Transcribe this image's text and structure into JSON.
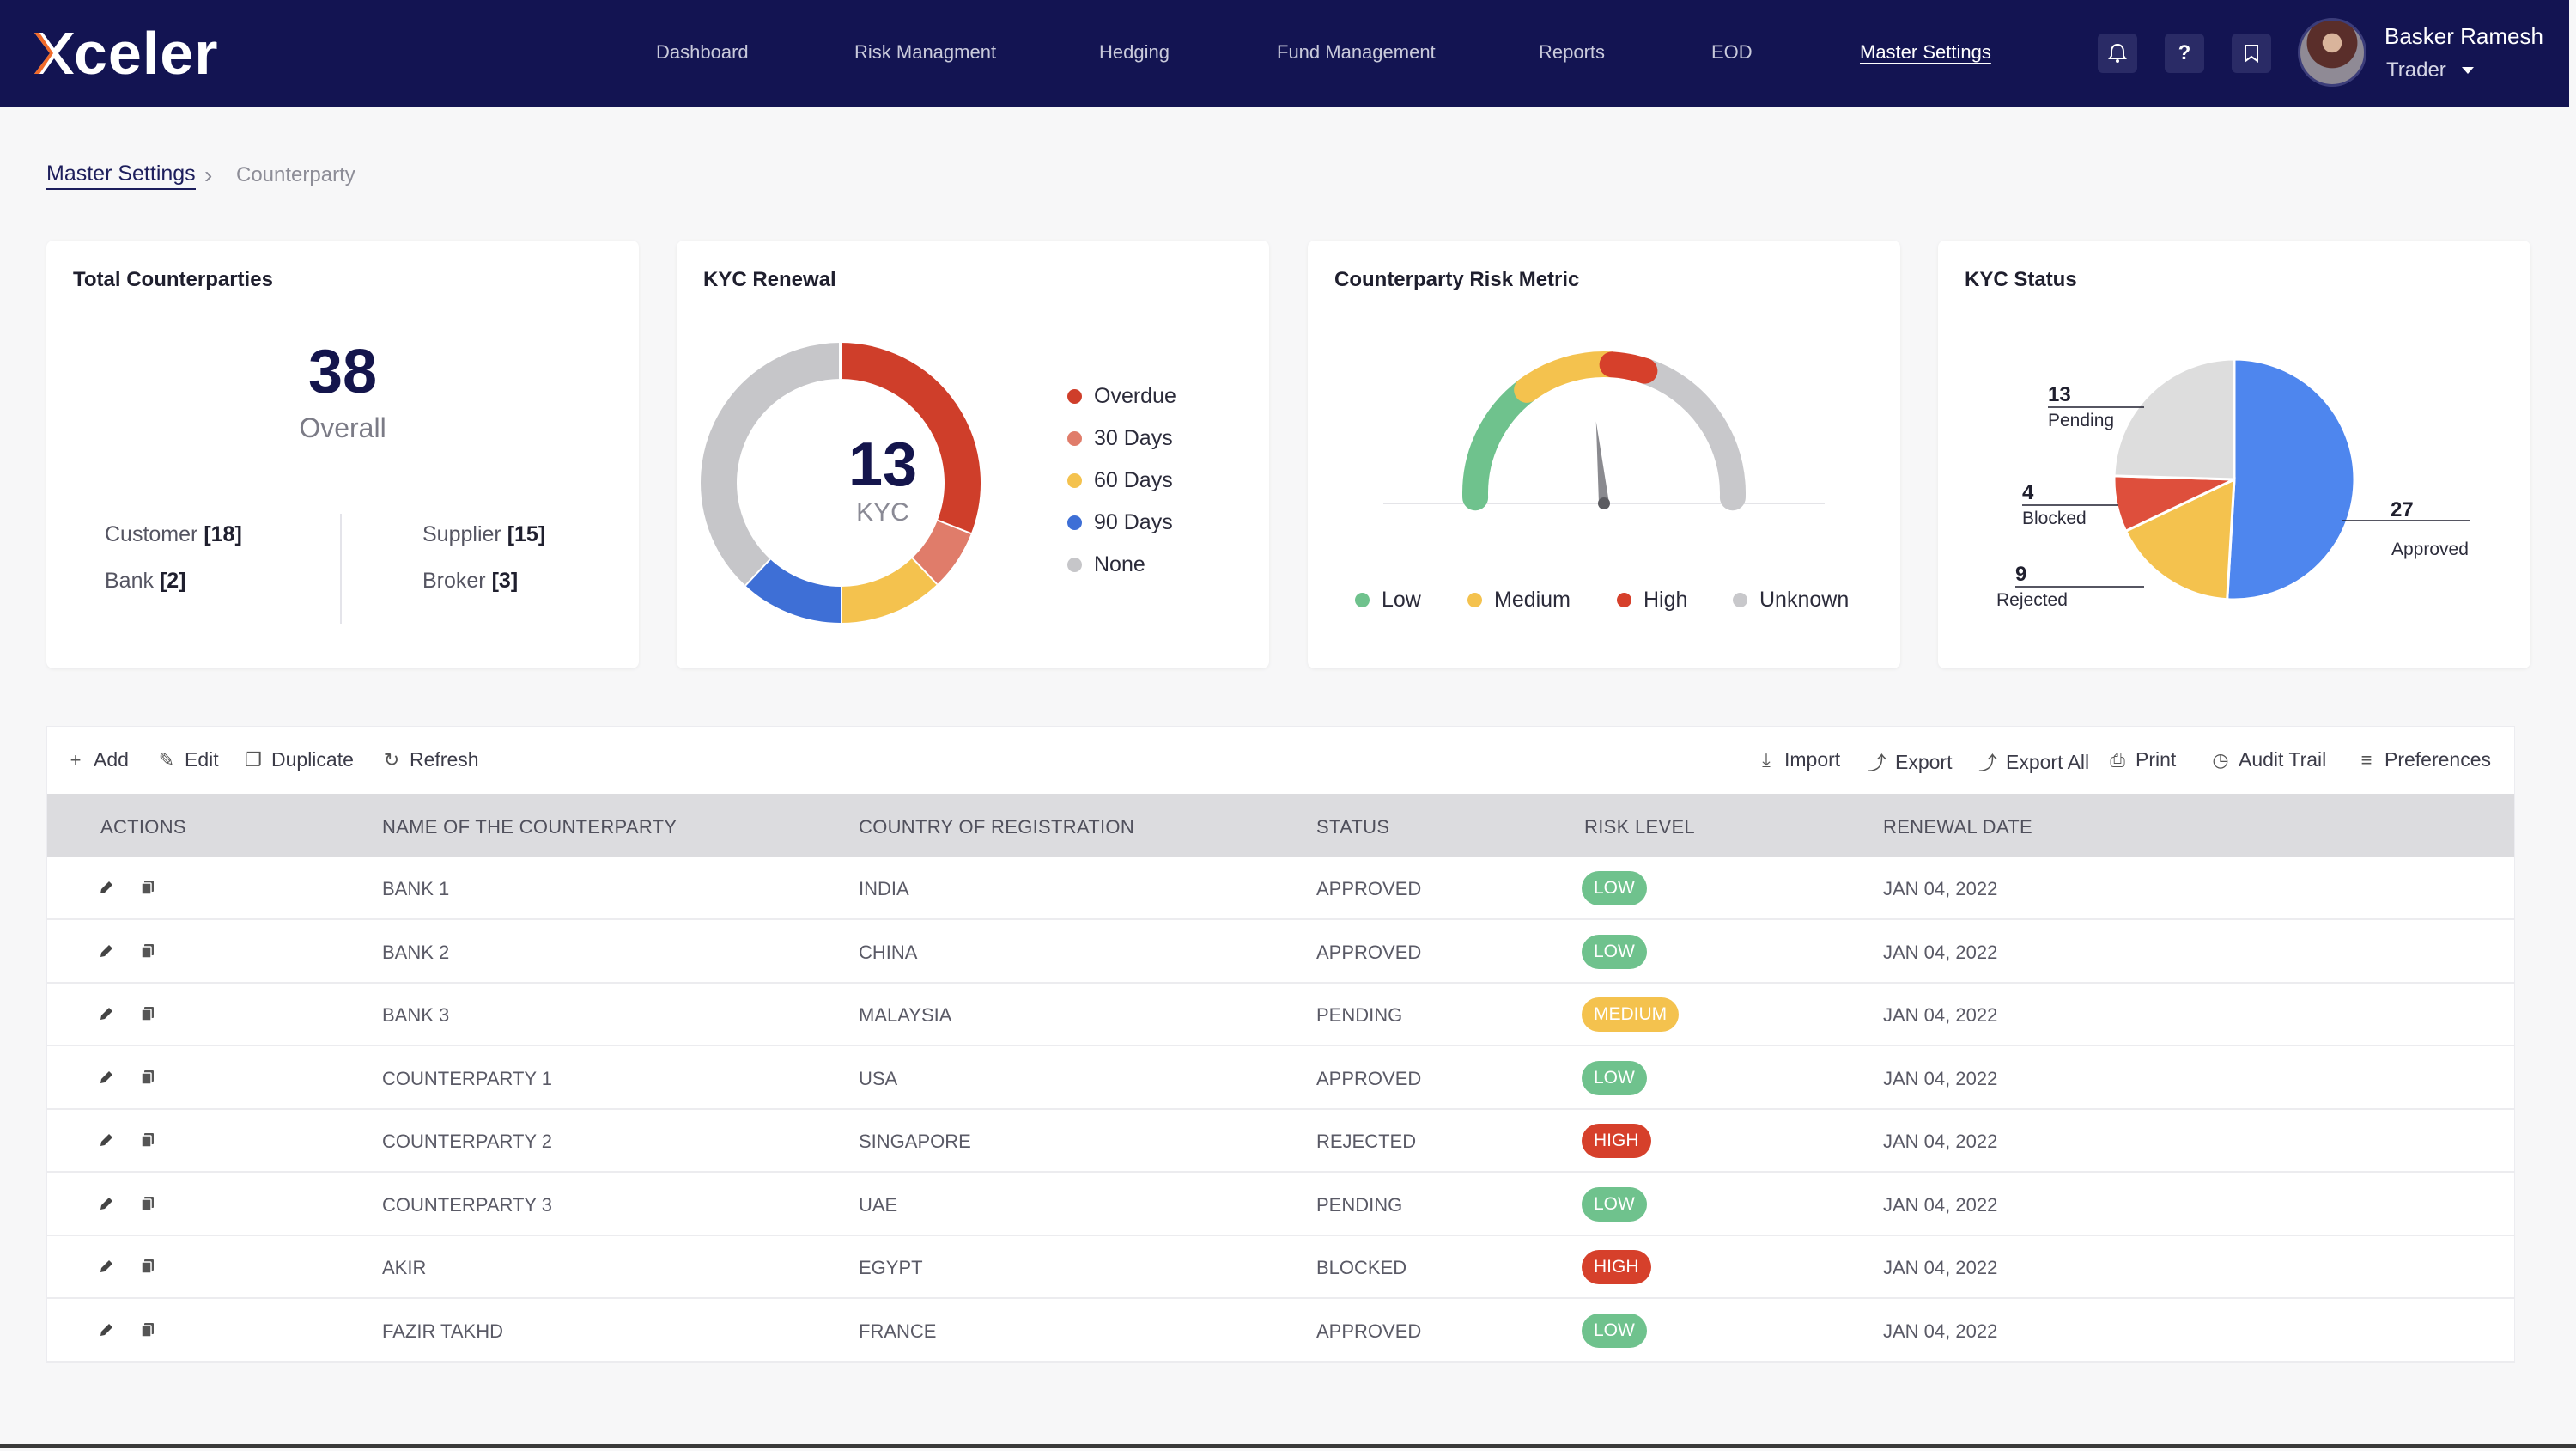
{
  "app": {
    "logo_text": "celer"
  },
  "nav": {
    "items": [
      {
        "label": "Dashboard",
        "active": false
      },
      {
        "label": "Risk Managment",
        "active": false
      },
      {
        "label": "Hedging",
        "active": false
      },
      {
        "label": "Fund Management",
        "active": false
      },
      {
        "label": "Reports",
        "active": false
      },
      {
        "label": "EOD",
        "active": false
      },
      {
        "label": "Master Settings",
        "active": true
      }
    ],
    "icons": [
      "bell-icon",
      "help-icon",
      "bookmark-icon"
    ],
    "help_glyph": "?"
  },
  "user": {
    "name": "Basker Ramesh",
    "role": "Trader"
  },
  "breadcrumb": {
    "root": "Master Settings",
    "current": "Counterparty"
  },
  "cards": {
    "total": {
      "title": "Total Counterparties",
      "value": "38",
      "value_label": "Overall",
      "stats": [
        {
          "label": "Customer",
          "value": "[18]"
        },
        {
          "label": "Supplier",
          "value": "[15]"
        },
        {
          "label": "Bank",
          "value": "[2]"
        },
        {
          "label": "Broker",
          "value": "[3]"
        }
      ]
    },
    "kyc_renewal": {
      "title": "KYC Renewal",
      "center_value": "13",
      "center_label": "KYC"
    },
    "risk_metric": {
      "title": "Counterparty Risk Metric"
    },
    "kyc_status": {
      "title": "KYC Status"
    }
  },
  "chart_data": [
    {
      "type": "donut",
      "title": "KYC Renewal",
      "categories": [
        "Overdue",
        "30 Days",
        "60 Days",
        "90 Days",
        "None"
      ],
      "values": [
        31,
        7,
        12,
        12,
        38
      ],
      "colors": [
        "#cf3e2a",
        "#e07c6a",
        "#f4c24e",
        "#3e6fd6",
        "#c6c6c9"
      ],
      "legend_position": "right"
    },
    {
      "type": "gauge",
      "title": "Counterparty Risk Metric",
      "categories": [
        "Low",
        "Medium",
        "High",
        "Unknown"
      ],
      "segments": [
        30,
        22,
        8,
        40
      ],
      "colors": [
        "#6fc28d",
        "#f4c24e",
        "#d6402b",
        "#c8c8cb"
      ],
      "needle_value": 47,
      "range": [
        0,
        100
      ],
      "legend_position": "bottom"
    },
    {
      "type": "pie",
      "title": "KYC Status",
      "categories": [
        "Approved",
        "Rejected",
        "Blocked",
        "Pending"
      ],
      "values": [
        27,
        9,
        4,
        13
      ],
      "colors": [
        "#4e86ee",
        "#f4c24e",
        "#de4f3c",
        "#dddddd"
      ]
    }
  ],
  "toolbar": {
    "left": [
      {
        "label": "Add",
        "icon": "plus-icon",
        "glyph": "+"
      },
      {
        "label": "Edit",
        "icon": "pencil-icon",
        "glyph": "✎"
      },
      {
        "label": "Duplicate",
        "icon": "copy-icon",
        "glyph": "❐"
      },
      {
        "label": "Refresh",
        "icon": "refresh-icon",
        "glyph": "↻"
      }
    ],
    "right": [
      {
        "label": "Import",
        "icon": "import-icon",
        "glyph": "⤓"
      },
      {
        "label": "Export",
        "icon": "export-icon",
        "glyph": "⤴"
      },
      {
        "label": "Export All",
        "icon": "export-all-icon",
        "glyph": "⤴"
      },
      {
        "label": "Print",
        "icon": "print-icon",
        "glyph": "⎙"
      },
      {
        "label": "Audit Trail",
        "icon": "history-icon",
        "glyph": "◷"
      },
      {
        "label": "Preferences",
        "icon": "preferences-icon",
        "glyph": "≡"
      }
    ]
  },
  "table": {
    "columns": [
      "ACTIONS",
      "NAME OF THE COUNTERPARTY",
      "COUNTRY OF REGISTRATION",
      "STATUS",
      "RISK LEVEL",
      "RENEWAL DATE"
    ],
    "risk_colors": {
      "LOW": "#6fc28d",
      "MEDIUM": "#f4c24e",
      "HIGH": "#d6402b"
    },
    "rows": [
      {
        "name": "BANK 1",
        "country": "INDIA",
        "status": "APPROVED",
        "risk": "LOW",
        "date": "JAN 04, 2022"
      },
      {
        "name": "BANK 2",
        "country": "CHINA",
        "status": "APPROVED",
        "risk": "LOW",
        "date": "JAN 04, 2022"
      },
      {
        "name": "BANK 3",
        "country": "MALAYSIA",
        "status": "PENDING",
        "risk": "MEDIUM",
        "date": "JAN 04, 2022"
      },
      {
        "name": "COUNTERPARTY 1",
        "country": "USA",
        "status": "APPROVED",
        "risk": "LOW",
        "date": "JAN 04, 2022"
      },
      {
        "name": "COUNTERPARTY 2",
        "country": "SINGAPORE",
        "status": "REJECTED",
        "risk": "HIGH",
        "date": "JAN 04, 2022"
      },
      {
        "name": "COUNTERPARTY 3",
        "country": "UAE",
        "status": "PENDING",
        "risk": "LOW",
        "date": "JAN 04, 2022"
      },
      {
        "name": "AKIR",
        "country": "EGYPT",
        "status": "BLOCKED",
        "risk": "HIGH",
        "date": "JAN 04, 2022"
      },
      {
        "name": "FAZIR TAKHD",
        "country": "FRANCE",
        "status": "APPROVED",
        "risk": "LOW",
        "date": "JAN 04, 2022"
      }
    ]
  }
}
